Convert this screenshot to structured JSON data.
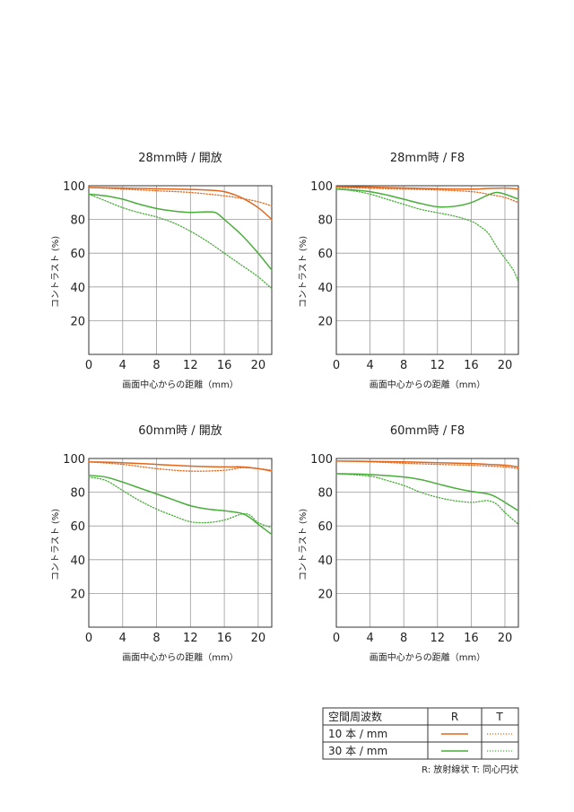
{
  "colors": {
    "r_line": "#e2671c",
    "t_line": "#49ad3a",
    "grid": "#9a9a9a",
    "axis": "#333333"
  },
  "chart_data": [
    {
      "type": "line",
      "title": "28mm時 / 開放",
      "xlabel": "画面中心からの距離（mm）",
      "ylabel": "コントラスト (%)",
      "xlim": [
        0,
        21.6
      ],
      "ylim": [
        0,
        100
      ],
      "x_ticks": [
        0,
        4,
        8,
        12,
        16,
        20
      ],
      "y_ticks": [
        20,
        40,
        60,
        80,
        100
      ],
      "series": [
        {
          "name": "10本/mm R",
          "style": "solid",
          "color": "r",
          "points": [
            [
              0,
              99
            ],
            [
              4,
              98.6
            ],
            [
              8,
              98.2
            ],
            [
              12,
              97.8
            ],
            [
              14,
              97.4
            ],
            [
              16,
              96.5
            ],
            [
              18,
              93
            ],
            [
              20,
              87
            ],
            [
              21.6,
              80
            ]
          ]
        },
        {
          "name": "10本/mm T",
          "style": "dotted",
          "color": "r",
          "points": [
            [
              0,
              99
            ],
            [
              4,
              98
            ],
            [
              8,
              97
            ],
            [
              12,
              96
            ],
            [
              16,
              94
            ],
            [
              18,
              92.5
            ],
            [
              20,
              90.5
            ],
            [
              21.6,
              88
            ]
          ]
        },
        {
          "name": "30本/mm R",
          "style": "solid",
          "color": "g",
          "points": [
            [
              0,
              95
            ],
            [
              2,
              94
            ],
            [
              4,
              92
            ],
            [
              6,
              89
            ],
            [
              8,
              86.5
            ],
            [
              10,
              85
            ],
            [
              12,
              84.2
            ],
            [
              14,
              84.5
            ],
            [
              15,
              84
            ],
            [
              16,
              80
            ],
            [
              18,
              71
            ],
            [
              20,
              60
            ],
            [
              21.6,
              50
            ]
          ]
        },
        {
          "name": "30本/mm T",
          "style": "dotted",
          "color": "g",
          "points": [
            [
              0,
              95
            ],
            [
              2,
              91
            ],
            [
              4,
              87
            ],
            [
              6,
              84
            ],
            [
              8,
              81.5
            ],
            [
              10,
              78
            ],
            [
              12,
              73
            ],
            [
              14,
              67
            ],
            [
              16,
              60
            ],
            [
              18,
              53
            ],
            [
              20,
              46
            ],
            [
              21.6,
              39
            ]
          ]
        }
      ]
    },
    {
      "type": "line",
      "title": "28mm時 / F8",
      "xlabel": "画面中心からの距離（mm）",
      "ylabel": "コントラスト (%)",
      "xlim": [
        0,
        21.6
      ],
      "ylim": [
        0,
        100
      ],
      "x_ticks": [
        0,
        4,
        8,
        12,
        16,
        20
      ],
      "y_ticks": [
        20,
        40,
        60,
        80,
        100
      ],
      "series": [
        {
          "name": "10本/mm R",
          "style": "solid",
          "color": "r",
          "points": [
            [
              0,
              99.5
            ],
            [
              4,
              99.2
            ],
            [
              8,
              98.7
            ],
            [
              12,
              98.2
            ],
            [
              16,
              98
            ],
            [
              18,
              98.4
            ],
            [
              20,
              98.6
            ],
            [
              21.6,
              98
            ]
          ]
        },
        {
          "name": "10本/mm T",
          "style": "dotted",
          "color": "r",
          "points": [
            [
              0,
              99
            ],
            [
              4,
              98.5
            ],
            [
              8,
              98
            ],
            [
              12,
              97.5
            ],
            [
              16,
              96.5
            ],
            [
              18,
              95
            ],
            [
              20,
              93
            ],
            [
              21.6,
              90
            ]
          ]
        },
        {
          "name": "30本/mm R",
          "style": "solid",
          "color": "g",
          "points": [
            [
              0,
              98
            ],
            [
              2,
              97.5
            ],
            [
              4,
              96.5
            ],
            [
              6,
              94.5
            ],
            [
              8,
              92
            ],
            [
              10,
              89.5
            ],
            [
              12,
              87.5
            ],
            [
              14,
              87.8
            ],
            [
              16,
              90
            ],
            [
              18,
              94.5
            ],
            [
              19,
              96
            ],
            [
              20,
              95
            ],
            [
              21.6,
              92
            ]
          ]
        },
        {
          "name": "30本/mm T",
          "style": "dotted",
          "color": "g",
          "points": [
            [
              0,
              98
            ],
            [
              2,
              97
            ],
            [
              4,
              95
            ],
            [
              6,
              92
            ],
            [
              8,
              89
            ],
            [
              10,
              86
            ],
            [
              12,
              84
            ],
            [
              14,
              82
            ],
            [
              16,
              79
            ],
            [
              17,
              76
            ],
            [
              18,
              72
            ],
            [
              19,
              64
            ],
            [
              20,
              57
            ],
            [
              21,
              50
            ],
            [
              21.6,
              43
            ]
          ]
        }
      ]
    },
    {
      "type": "line",
      "title": "60mm時 / 開放",
      "xlabel": "画面中心からの距離（mm）",
      "ylabel": "コントラスト (%)",
      "xlim": [
        0,
        21.6
      ],
      "ylim": [
        0,
        100
      ],
      "x_ticks": [
        0,
        4,
        8,
        12,
        16,
        20
      ],
      "y_ticks": [
        20,
        40,
        60,
        80,
        100
      ],
      "series": [
        {
          "name": "10本/mm R",
          "style": "solid",
          "color": "r",
          "points": [
            [
              0,
              98
            ],
            [
              4,
              97.5
            ],
            [
              8,
              96.5
            ],
            [
              12,
              95.5
            ],
            [
              16,
              95
            ],
            [
              18,
              95
            ],
            [
              20,
              94
            ],
            [
              21.6,
              92.5
            ]
          ]
        },
        {
          "name": "10本/mm T",
          "style": "dotted",
          "color": "r",
          "points": [
            [
              0,
              98
            ],
            [
              4,
              96.5
            ],
            [
              8,
              94
            ],
            [
              12,
              92.5
            ],
            [
              16,
              93
            ],
            [
              18,
              94.5
            ],
            [
              20,
              94
            ],
            [
              21.6,
              93
            ]
          ]
        },
        {
          "name": "30本/mm R",
          "style": "solid",
          "color": "g",
          "points": [
            [
              0,
              90
            ],
            [
              2,
              89
            ],
            [
              4,
              86
            ],
            [
              6,
              82.5
            ],
            [
              8,
              79
            ],
            [
              10,
              75.5
            ],
            [
              12,
              72
            ],
            [
              14,
              70
            ],
            [
              16,
              69
            ],
            [
              18,
              67.5
            ],
            [
              19,
              65
            ],
            [
              20,
              61
            ],
            [
              21.6,
              55
            ]
          ]
        },
        {
          "name": "30本/mm T",
          "style": "dotted",
          "color": "g",
          "points": [
            [
              0,
              89
            ],
            [
              2,
              87
            ],
            [
              4,
              81
            ],
            [
              6,
              75
            ],
            [
              8,
              70
            ],
            [
              10,
              66
            ],
            [
              12,
              62.5
            ],
            [
              14,
              62
            ],
            [
              16,
              63.5
            ],
            [
              18,
              67
            ],
            [
              19,
              66.5
            ],
            [
              20,
              62
            ],
            [
              21.6,
              59
            ]
          ]
        }
      ]
    },
    {
      "type": "line",
      "title": "60mm時 / F8",
      "xlabel": "画面中心からの距離（mm）",
      "ylabel": "コントラスト (%)",
      "xlim": [
        0,
        21.6
      ],
      "ylim": [
        0,
        100
      ],
      "x_ticks": [
        0,
        4,
        8,
        12,
        16,
        20
      ],
      "y_ticks": [
        20,
        40,
        60,
        80,
        100
      ],
      "series": [
        {
          "name": "10本/mm R",
          "style": "solid",
          "color": "r",
          "points": [
            [
              0,
              98.5
            ],
            [
              4,
              98.3
            ],
            [
              8,
              98
            ],
            [
              12,
              97.5
            ],
            [
              16,
              97
            ],
            [
              18,
              96.5
            ],
            [
              20,
              96
            ],
            [
              21.6,
              95
            ]
          ]
        },
        {
          "name": "10本/mm T",
          "style": "dotted",
          "color": "r",
          "points": [
            [
              0,
              98.5
            ],
            [
              4,
              98
            ],
            [
              8,
              97.2
            ],
            [
              12,
              96.5
            ],
            [
              16,
              96
            ],
            [
              18,
              95.5
            ],
            [
              20,
              95
            ],
            [
              21.6,
              94
            ]
          ]
        },
        {
          "name": "30本/mm R",
          "style": "solid",
          "color": "g",
          "points": [
            [
              0,
              91
            ],
            [
              4,
              90.5
            ],
            [
              8,
              89
            ],
            [
              10,
              87.5
            ],
            [
              12,
              85
            ],
            [
              14,
              82.5
            ],
            [
              16,
              80.5
            ],
            [
              18,
              79
            ],
            [
              19,
              77
            ],
            [
              20,
              74
            ],
            [
              21.6,
              69
            ]
          ]
        },
        {
          "name": "30本/mm T",
          "style": "dotted",
          "color": "g",
          "points": [
            [
              0,
              91
            ],
            [
              4,
              89.5
            ],
            [
              6,
              87
            ],
            [
              8,
              84
            ],
            [
              10,
              80
            ],
            [
              12,
              77
            ],
            [
              14,
              75
            ],
            [
              16,
              74
            ],
            [
              17,
              74.5
            ],
            [
              18,
              75
            ],
            [
              19,
              73
            ],
            [
              20,
              68
            ],
            [
              21.6,
              61
            ]
          ]
        }
      ]
    }
  ],
  "legend": {
    "header": "空間周波数",
    "col_r": "R",
    "col_t": "T",
    "rows": [
      {
        "label": "10 本 / mm"
      },
      {
        "label": "30 本 / mm"
      }
    ],
    "note": "R: 放射線状 T: 同心円状"
  }
}
